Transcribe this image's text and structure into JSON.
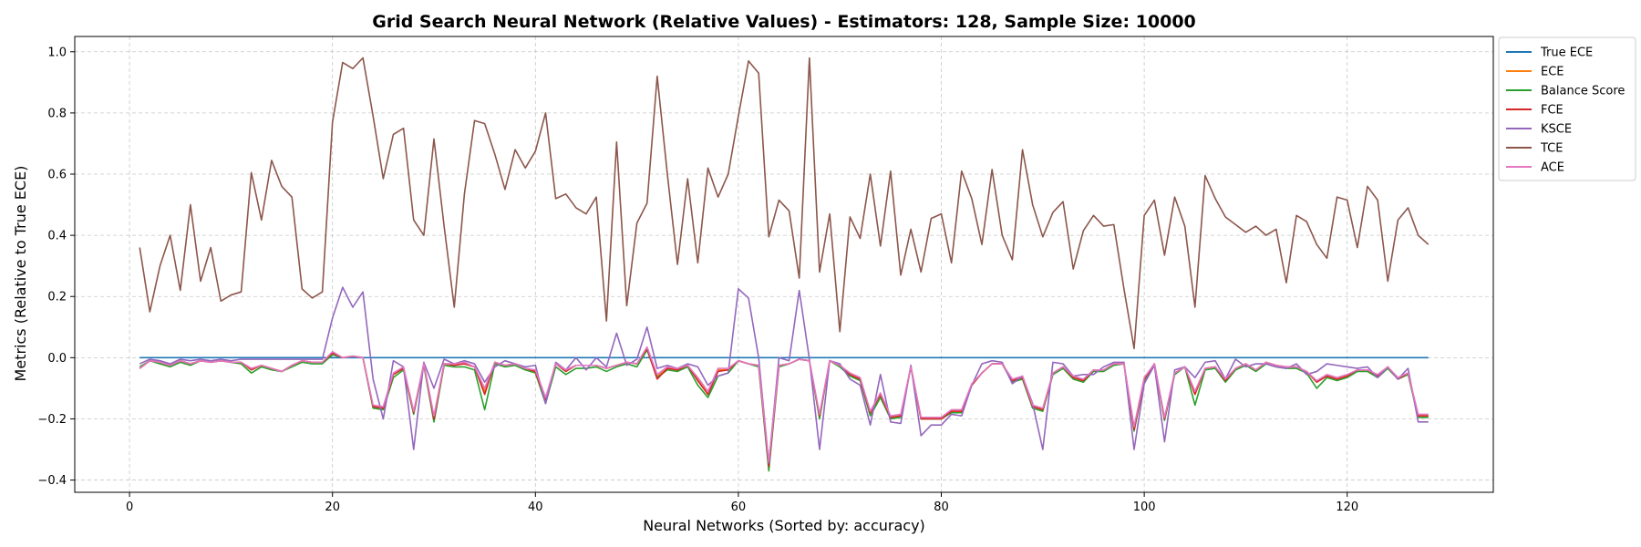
{
  "chart_data": {
    "type": "line",
    "title": "Grid Search Neural Network (Relative Values) - Estimators: 128, Sample Size: 10000",
    "xlabel": "Neural Networks (Sorted by: accuracy)",
    "ylabel": "Metrics (Relative to True ECE)",
    "xlim": [
      -5.4,
      134.4
    ],
    "ylim": [
      -0.44,
      1.05
    ],
    "xticks": [
      0,
      20,
      40,
      60,
      80,
      100,
      120
    ],
    "yticks": [
      -0.4,
      -0.2,
      0.0,
      0.2,
      0.4,
      0.6,
      0.8,
      1.0
    ],
    "ytick_labels": [
      "−0.4",
      "−0.2",
      "0.0",
      "0.2",
      "0.4",
      "0.6",
      "0.8",
      "1.0"
    ],
    "grid": true,
    "legend_position": "outside-top-right",
    "x_start": 1,
    "x_end": 128,
    "series": [
      {
        "name": "True ECE",
        "color": "#1f77b4",
        "values": [
          0,
          0,
          0,
          0,
          0,
          0,
          0,
          0,
          0,
          0,
          0,
          0,
          0,
          0,
          0,
          0,
          0,
          0,
          0,
          0,
          0,
          0,
          0,
          0,
          0,
          0,
          0,
          0,
          0,
          0,
          0,
          0,
          0,
          0,
          0,
          0,
          0,
          0,
          0,
          0,
          0,
          0,
          0,
          0,
          0,
          0,
          0,
          0,
          0,
          0,
          0,
          0,
          0,
          0,
          0,
          0,
          0,
          0,
          0,
          0,
          0,
          0,
          0,
          0,
          0,
          0,
          0,
          0,
          0,
          0,
          0,
          0,
          0,
          0,
          0,
          0,
          0,
          0,
          0,
          0,
          0,
          0,
          0,
          0,
          0,
          0,
          0,
          0,
          0,
          0,
          0,
          0,
          0,
          0,
          0,
          0,
          0,
          0,
          0,
          0,
          0,
          0,
          0,
          0,
          0,
          0,
          0,
          0,
          0,
          0,
          0,
          0,
          0,
          0,
          0,
          0,
          0,
          0,
          0,
          0,
          0,
          0,
          0,
          0,
          0,
          0,
          0,
          0
        ]
      },
      {
        "name": "ECE",
        "color": "#ff7f0e",
        "values": [
          -0.035,
          -0.01,
          -0.015,
          -0.025,
          -0.01,
          -0.02,
          -0.01,
          -0.015,
          -0.01,
          -0.015,
          -0.015,
          -0.035,
          -0.025,
          -0.035,
          -0.045,
          -0.025,
          -0.01,
          -0.015,
          -0.015,
          0.015,
          0.0,
          0.005,
          0.0,
          -0.16,
          -0.165,
          -0.055,
          -0.035,
          -0.18,
          -0.02,
          -0.195,
          -0.02,
          -0.02,
          -0.02,
          -0.03,
          -0.11,
          -0.015,
          -0.025,
          -0.02,
          -0.035,
          -0.045,
          -0.14,
          -0.02,
          -0.04,
          -0.025,
          -0.025,
          -0.025,
          -0.035,
          -0.025,
          -0.015,
          -0.02,
          0.03,
          -0.06,
          -0.035,
          -0.04,
          -0.025,
          -0.07,
          -0.12,
          -0.04,
          -0.04,
          -0.01,
          -0.02,
          -0.025,
          -0.35,
          -0.025,
          -0.02,
          -0.005,
          -0.01,
          -0.19,
          -0.01,
          -0.025,
          -0.055,
          -0.07,
          -0.18,
          -0.12,
          -0.195,
          -0.19,
          -0.03,
          -0.2,
          -0.2,
          -0.2,
          -0.175,
          -0.175,
          -0.09,
          -0.05,
          -0.02,
          -0.02,
          -0.075,
          -0.065,
          -0.16,
          -0.17,
          -0.05,
          -0.03,
          -0.065,
          -0.075,
          -0.04,
          -0.04,
          -0.02,
          -0.02,
          -0.235,
          -0.07,
          -0.02,
          -0.2,
          -0.05,
          -0.03,
          -0.12,
          -0.035,
          -0.03,
          -0.075,
          -0.035,
          -0.02,
          -0.04,
          -0.015,
          -0.025,
          -0.03,
          -0.03,
          -0.045,
          -0.08,
          -0.06,
          -0.07,
          -0.06,
          -0.04,
          -0.04,
          -0.06,
          -0.03,
          -0.07,
          -0.05,
          -0.19,
          -0.19
        ]
      },
      {
        "name": "Balance Score",
        "color": "#2ca02c",
        "values": [
          -0.03,
          -0.01,
          -0.02,
          -0.03,
          -0.015,
          -0.025,
          -0.01,
          -0.015,
          -0.01,
          -0.015,
          -0.02,
          -0.05,
          -0.03,
          -0.04,
          -0.045,
          -0.03,
          -0.015,
          -0.02,
          -0.02,
          0.01,
          0.0,
          0.005,
          0.0,
          -0.165,
          -0.17,
          -0.065,
          -0.04,
          -0.185,
          -0.025,
          -0.21,
          -0.025,
          -0.03,
          -0.03,
          -0.04,
          -0.17,
          -0.02,
          -0.03,
          -0.025,
          -0.04,
          -0.05,
          -0.15,
          -0.03,
          -0.055,
          -0.035,
          -0.035,
          -0.03,
          -0.045,
          -0.03,
          -0.02,
          -0.03,
          0.025,
          -0.065,
          -0.04,
          -0.045,
          -0.03,
          -0.09,
          -0.13,
          -0.06,
          -0.05,
          -0.01,
          -0.02,
          -0.03,
          -0.37,
          -0.03,
          -0.02,
          -0.005,
          -0.01,
          -0.2,
          -0.01,
          -0.03,
          -0.06,
          -0.075,
          -0.19,
          -0.13,
          -0.2,
          -0.195,
          -0.03,
          -0.2,
          -0.2,
          -0.2,
          -0.18,
          -0.18,
          -0.09,
          -0.05,
          -0.02,
          -0.02,
          -0.08,
          -0.07,
          -0.165,
          -0.175,
          -0.055,
          -0.035,
          -0.07,
          -0.08,
          -0.045,
          -0.045,
          -0.025,
          -0.02,
          -0.24,
          -0.075,
          -0.02,
          -0.205,
          -0.055,
          -0.03,
          -0.155,
          -0.04,
          -0.035,
          -0.08,
          -0.04,
          -0.025,
          -0.045,
          -0.02,
          -0.03,
          -0.035,
          -0.035,
          -0.05,
          -0.1,
          -0.065,
          -0.075,
          -0.065,
          -0.045,
          -0.045,
          -0.065,
          -0.035,
          -0.07,
          -0.055,
          -0.195,
          -0.195
        ]
      },
      {
        "name": "FCE",
        "color": "#d62728",
        "values": [
          -0.035,
          -0.01,
          -0.015,
          -0.025,
          -0.01,
          -0.02,
          -0.01,
          -0.015,
          -0.01,
          -0.015,
          -0.015,
          -0.04,
          -0.025,
          -0.035,
          -0.045,
          -0.025,
          -0.01,
          -0.015,
          -0.015,
          0.015,
          0.0,
          0.005,
          0.0,
          -0.16,
          -0.165,
          -0.055,
          -0.035,
          -0.18,
          -0.02,
          -0.2,
          -0.02,
          -0.025,
          -0.02,
          -0.03,
          -0.12,
          -0.015,
          -0.025,
          -0.02,
          -0.035,
          -0.045,
          -0.14,
          -0.02,
          -0.045,
          -0.025,
          -0.025,
          -0.025,
          -0.035,
          -0.025,
          -0.015,
          -0.02,
          0.03,
          -0.07,
          -0.035,
          -0.04,
          -0.025,
          -0.075,
          -0.12,
          -0.045,
          -0.04,
          -0.01,
          -0.02,
          -0.025,
          -0.355,
          -0.025,
          -0.02,
          -0.005,
          -0.01,
          -0.19,
          -0.01,
          -0.025,
          -0.055,
          -0.07,
          -0.18,
          -0.12,
          -0.195,
          -0.19,
          -0.03,
          -0.2,
          -0.2,
          -0.2,
          -0.175,
          -0.175,
          -0.09,
          -0.05,
          -0.02,
          -0.02,
          -0.075,
          -0.065,
          -0.16,
          -0.17,
          -0.05,
          -0.03,
          -0.065,
          -0.075,
          -0.04,
          -0.04,
          -0.02,
          -0.02,
          -0.235,
          -0.07,
          -0.02,
          -0.2,
          -0.05,
          -0.03,
          -0.12,
          -0.035,
          -0.03,
          -0.075,
          -0.035,
          -0.02,
          -0.04,
          -0.015,
          -0.025,
          -0.03,
          -0.03,
          -0.045,
          -0.08,
          -0.06,
          -0.07,
          -0.06,
          -0.04,
          -0.04,
          -0.06,
          -0.03,
          -0.07,
          -0.05,
          -0.19,
          -0.19
        ]
      },
      {
        "name": "KSCE",
        "color": "#9467bd",
        "values": [
          -0.02,
          -0.005,
          -0.01,
          -0.02,
          -0.005,
          -0.01,
          -0.005,
          -0.01,
          -0.005,
          -0.01,
          -0.005,
          -0.005,
          -0.005,
          -0.005,
          -0.005,
          -0.005,
          -0.005,
          -0.005,
          -0.005,
          0.13,
          0.23,
          0.165,
          0.215,
          -0.07,
          -0.2,
          -0.01,
          -0.03,
          -0.3,
          -0.015,
          -0.1,
          -0.005,
          -0.02,
          -0.01,
          -0.02,
          -0.08,
          -0.03,
          -0.01,
          -0.02,
          -0.03,
          -0.025,
          -0.15,
          -0.015,
          -0.04,
          0.0,
          -0.04,
          0.0,
          -0.03,
          0.08,
          -0.025,
          -0.005,
          0.1,
          -0.035,
          -0.025,
          -0.035,
          -0.02,
          -0.03,
          -0.09,
          -0.06,
          -0.05,
          0.225,
          0.195,
          0.0,
          -0.345,
          0.0,
          -0.01,
          0.22,
          -0.005,
          -0.3,
          -0.01,
          -0.02,
          -0.07,
          -0.09,
          -0.22,
          -0.055,
          -0.21,
          -0.215,
          -0.025,
          -0.255,
          -0.22,
          -0.22,
          -0.185,
          -0.19,
          -0.09,
          -0.02,
          -0.01,
          -0.015,
          -0.085,
          -0.06,
          -0.15,
          -0.3,
          -0.015,
          -0.02,
          -0.06,
          -0.055,
          -0.055,
          -0.03,
          -0.015,
          -0.015,
          -0.3,
          -0.085,
          -0.025,
          -0.275,
          -0.04,
          -0.03,
          -0.065,
          -0.015,
          -0.01,
          -0.07,
          -0.005,
          -0.03,
          -0.02,
          -0.02,
          -0.03,
          -0.035,
          -0.02,
          -0.055,
          -0.045,
          -0.02,
          -0.025,
          -0.03,
          -0.035,
          -0.03,
          -0.065,
          -0.03,
          -0.07,
          -0.035,
          -0.21,
          -0.21
        ]
      },
      {
        "name": "TCE",
        "color": "#8c564b",
        "values": [
          0.36,
          0.15,
          0.3,
          0.4,
          0.22,
          0.5,
          0.25,
          0.36,
          0.185,
          0.205,
          0.215,
          0.605,
          0.45,
          0.645,
          0.56,
          0.525,
          0.225,
          0.195,
          0.215,
          0.77,
          0.965,
          0.945,
          0.98,
          0.79,
          0.585,
          0.73,
          0.75,
          0.45,
          0.4,
          0.715,
          0.43,
          0.165,
          0.535,
          0.775,
          0.765,
          0.665,
          0.55,
          0.68,
          0.62,
          0.675,
          0.8,
          0.52,
          0.535,
          0.49,
          0.47,
          0.525,
          0.12,
          0.705,
          0.17,
          0.44,
          0.505,
          0.92,
          0.6,
          0.305,
          0.585,
          0.31,
          0.62,
          0.525,
          0.6,
          0.79,
          0.97,
          0.93,
          0.395,
          0.515,
          0.48,
          0.26,
          0.98,
          0.28,
          0.47,
          0.085,
          0.46,
          0.39,
          0.6,
          0.365,
          0.61,
          0.27,
          0.42,
          0.28,
          0.455,
          0.47,
          0.31,
          0.61,
          0.52,
          0.37,
          0.615,
          0.4,
          0.32,
          0.68,
          0.5,
          0.395,
          0.475,
          0.51,
          0.29,
          0.415,
          0.465,
          0.43,
          0.435,
          0.225,
          0.03,
          0.465,
          0.515,
          0.335,
          0.525,
          0.43,
          0.165,
          0.595,
          0.52,
          0.46,
          0.435,
          0.41,
          0.43,
          0.4,
          0.42,
          0.245,
          0.465,
          0.445,
          0.37,
          0.325,
          0.525,
          0.515,
          0.36,
          0.56,
          0.515,
          0.25,
          0.45,
          0.49,
          0.4,
          0.37
        ]
      },
      {
        "name": "ACE",
        "color": "#e377c2",
        "values": [
          -0.035,
          -0.01,
          -0.015,
          -0.025,
          -0.01,
          -0.02,
          -0.01,
          -0.015,
          -0.01,
          -0.015,
          -0.015,
          -0.035,
          -0.025,
          -0.035,
          -0.045,
          -0.025,
          -0.01,
          -0.015,
          -0.015,
          0.02,
          0.0,
          0.005,
          0.0,
          -0.155,
          -0.16,
          -0.05,
          -0.03,
          -0.175,
          -0.02,
          -0.19,
          -0.02,
          -0.02,
          -0.015,
          -0.03,
          -0.1,
          -0.015,
          -0.025,
          -0.02,
          -0.035,
          -0.04,
          -0.13,
          -0.02,
          -0.04,
          -0.025,
          -0.025,
          -0.025,
          -0.035,
          -0.025,
          -0.015,
          -0.02,
          0.035,
          -0.055,
          -0.03,
          -0.035,
          -0.025,
          -0.065,
          -0.11,
          -0.035,
          -0.035,
          -0.01,
          -0.02,
          -0.025,
          -0.34,
          -0.025,
          -0.02,
          -0.005,
          -0.01,
          -0.185,
          -0.01,
          -0.025,
          -0.05,
          -0.065,
          -0.175,
          -0.115,
          -0.19,
          -0.185,
          -0.03,
          -0.195,
          -0.195,
          -0.195,
          -0.17,
          -0.17,
          -0.085,
          -0.05,
          -0.02,
          -0.02,
          -0.07,
          -0.06,
          -0.155,
          -0.165,
          -0.05,
          -0.03,
          -0.06,
          -0.07,
          -0.04,
          -0.04,
          -0.02,
          -0.02,
          -0.225,
          -0.065,
          -0.02,
          -0.195,
          -0.05,
          -0.03,
          -0.11,
          -0.035,
          -0.03,
          -0.07,
          -0.035,
          -0.02,
          -0.04,
          -0.015,
          -0.025,
          -0.03,
          -0.03,
          -0.045,
          -0.075,
          -0.055,
          -0.065,
          -0.055,
          -0.04,
          -0.04,
          -0.055,
          -0.03,
          -0.065,
          -0.05,
          -0.185,
          -0.185
        ]
      }
    ]
  }
}
